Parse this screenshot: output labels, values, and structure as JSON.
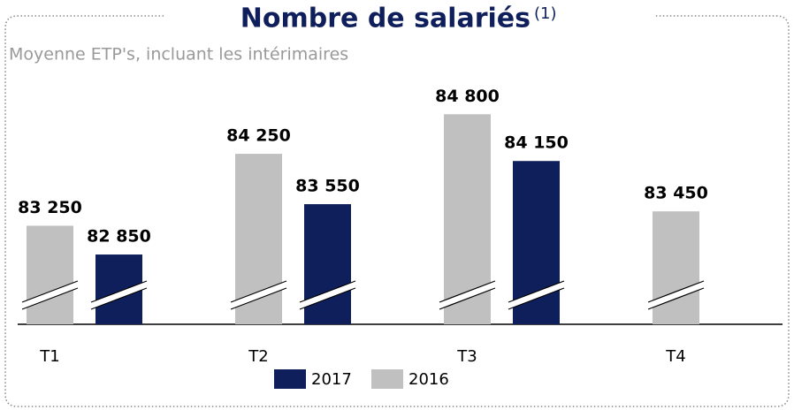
{
  "chart_data": {
    "type": "bar",
    "title": "Nombre de salariés",
    "title_note": "(1)",
    "subtitle": "Moyenne ETP's, incluant les intérimaires",
    "categories": [
      "T1",
      "T2",
      "T3",
      "T4"
    ],
    "series": [
      {
        "name": "2016",
        "color": "#c0c0c0",
        "values": [
          83250,
          84250,
          84800,
          83450
        ],
        "value_labels": [
          "83 250",
          "84 250",
          "84 800",
          "83 450"
        ]
      },
      {
        "name": "2017",
        "color": "#0f1f5c",
        "values": [
          82850,
          83550,
          84150,
          null
        ],
        "value_labels": [
          "82 850",
          "83 550",
          "84 150",
          null
        ]
      }
    ],
    "ylim": [
      81880,
      85160
    ],
    "axis_break": true,
    "legend": "bottom"
  }
}
